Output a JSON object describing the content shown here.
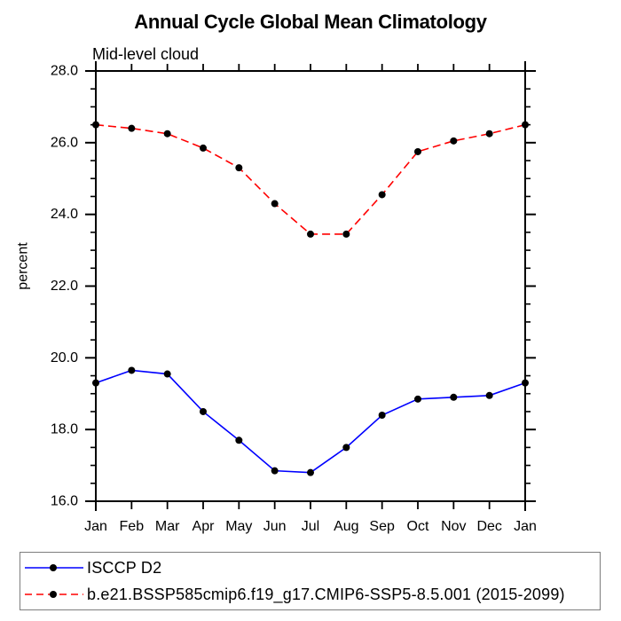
{
  "chart_data": {
    "type": "line",
    "title": "Annual Cycle Global Mean Climatology",
    "subtitle": "Mid-level cloud",
    "ylabel": "percent",
    "xlabel": "",
    "categories": [
      "Jan",
      "Feb",
      "Mar",
      "Apr",
      "May",
      "Jun",
      "Jul",
      "Aug",
      "Sep",
      "Oct",
      "Nov",
      "Dec",
      "Jan"
    ],
    "ylim": [
      16.0,
      28.0
    ],
    "yticks": {
      "major": [
        16,
        18,
        20,
        22,
        24,
        26,
        28
      ],
      "labels": [
        "16.0",
        "18.0",
        "20.0",
        "22.0",
        "24.0",
        "26.0",
        "28.0"
      ],
      "minor_step": 0.5
    },
    "grid": false,
    "legend_position": "bottom-left-box",
    "marker": {
      "shape": "filled-circle",
      "color": "#000000"
    },
    "series": [
      {
        "name": "ISCCP D2",
        "color": "#0000ff",
        "line_style": "solid",
        "values": [
          19.3,
          19.65,
          19.55,
          18.5,
          17.7,
          16.85,
          16.8,
          17.5,
          18.4,
          18.85,
          18.9,
          18.95,
          19.3
        ]
      },
      {
        "name": "b.e21.BSSP585cmip6.f19_g17.CMIP6-SSP5-8.5.001 (2015-2099)",
        "color": "#ff0000",
        "line_style": "dashed",
        "values": [
          26.5,
          26.4,
          26.25,
          25.85,
          25.3,
          24.3,
          23.45,
          23.45,
          24.55,
          25.75,
          26.05,
          26.25,
          26.5
        ]
      }
    ]
  }
}
